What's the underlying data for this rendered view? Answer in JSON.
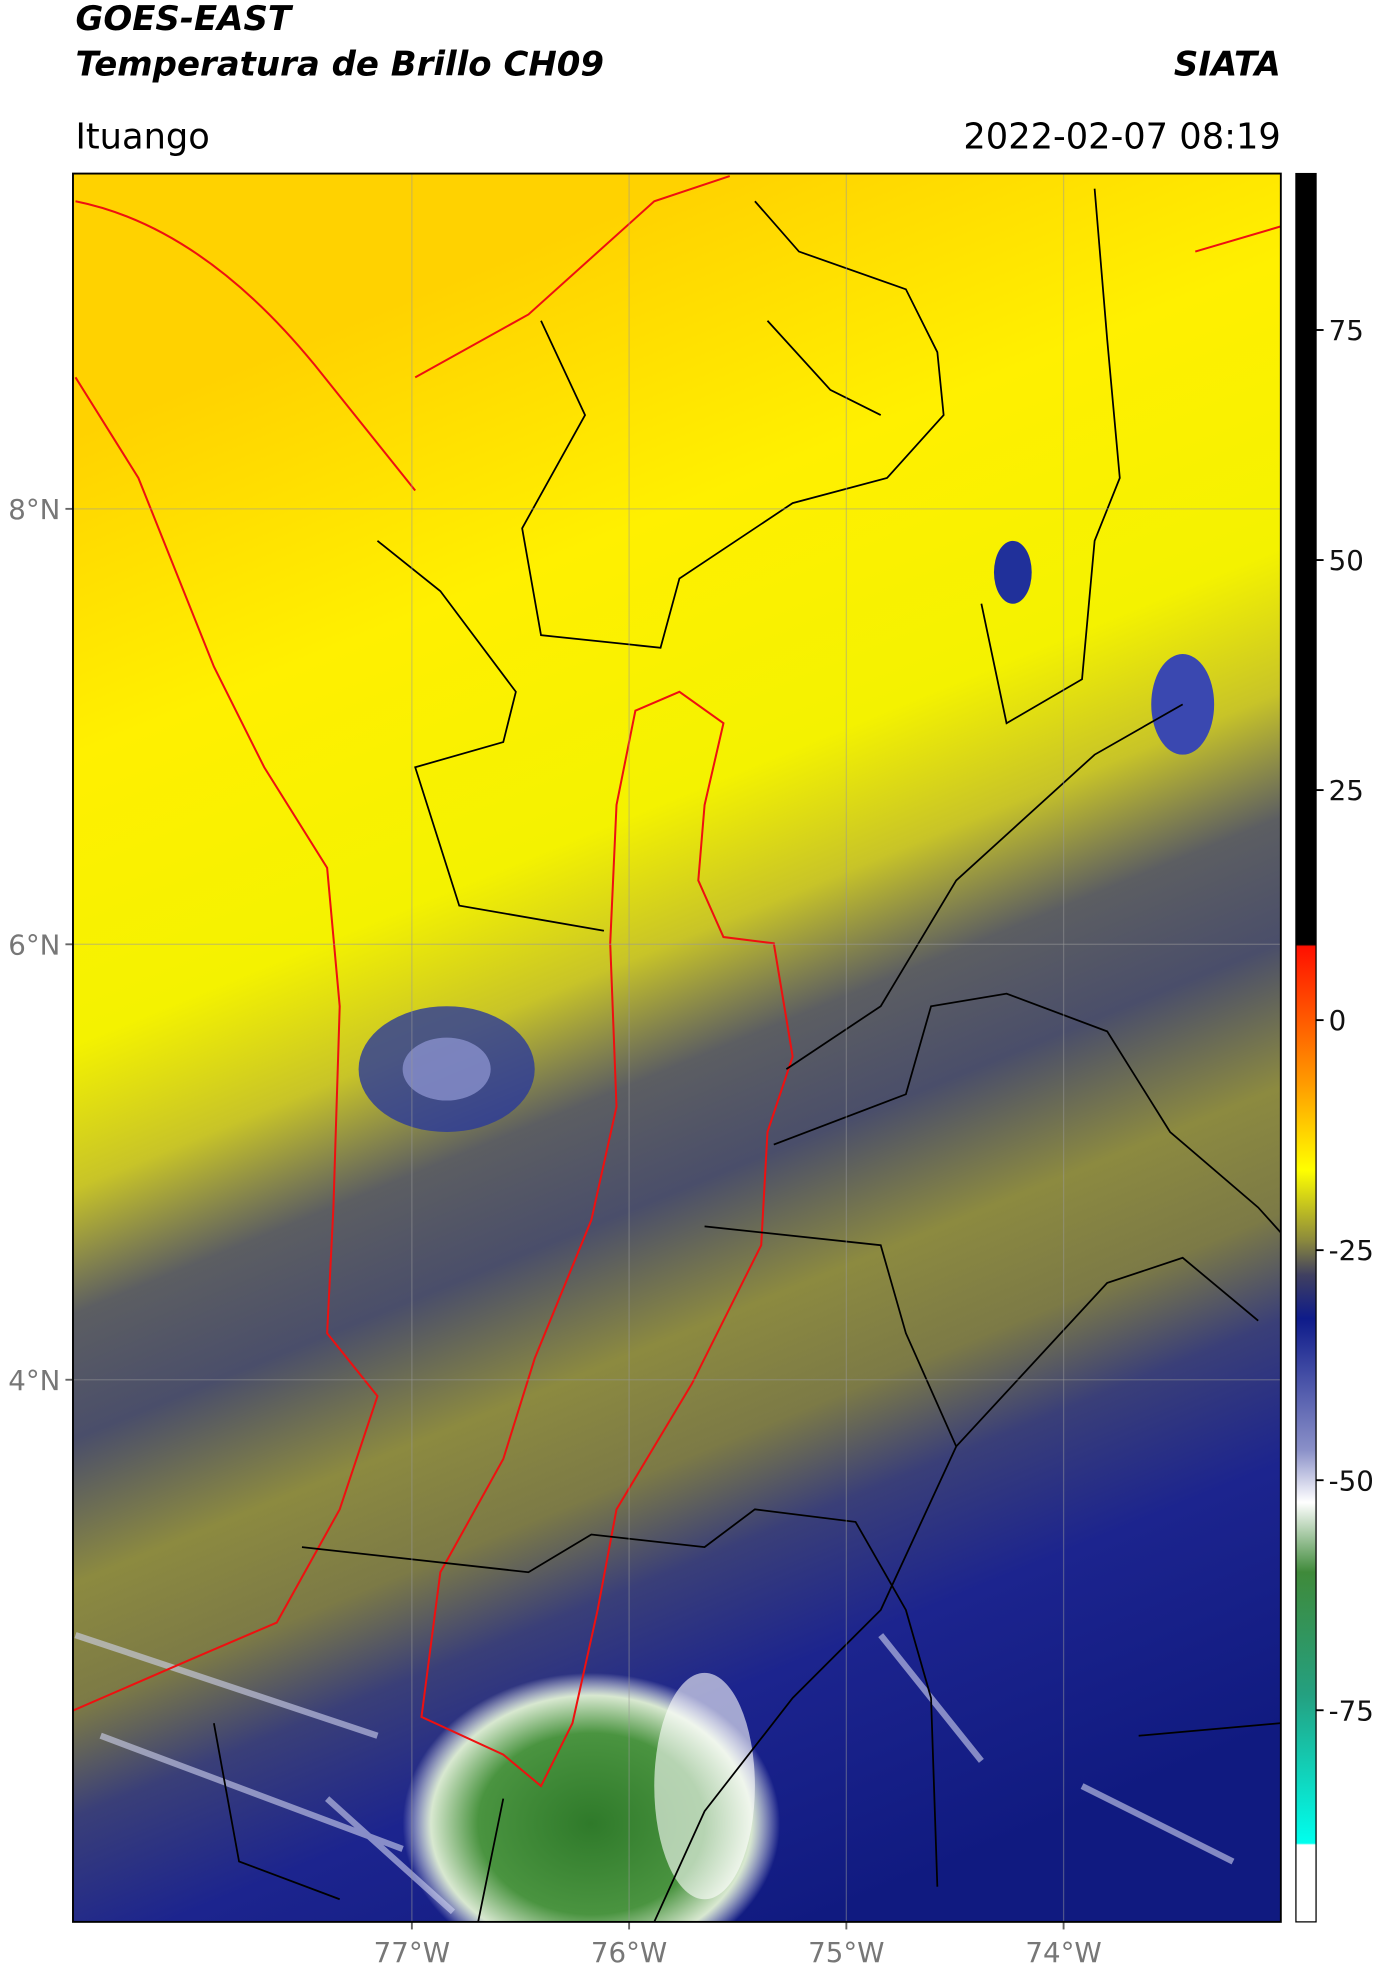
{
  "header": {
    "title": "GOES-EAST",
    "subtitle": "Temperatura de Brillo CH09",
    "brand": "SIATA",
    "location": "Ituango",
    "datetime": "2022-02-07 08:19"
  },
  "map": {
    "xlim": [
      -78.56,
      -73.0
    ],
    "ylim": [
      1.51,
      9.54
    ],
    "xticks": [
      {
        "value": -77,
        "label": "77°W"
      },
      {
        "value": -76,
        "label": "76°W"
      },
      {
        "value": -75,
        "label": "75°W"
      },
      {
        "value": -74,
        "label": "74°W"
      }
    ],
    "yticks": [
      {
        "value": 8,
        "label": "8°N"
      },
      {
        "value": 6,
        "label": "6°N"
      },
      {
        "value": 4,
        "label": "4°N"
      }
    ],
    "grid": true
  },
  "colorbar": {
    "lim": [
      -98,
      92
    ],
    "ticks": [
      75,
      50,
      25,
      0,
      -25,
      -50,
      -75
    ]
  }
}
